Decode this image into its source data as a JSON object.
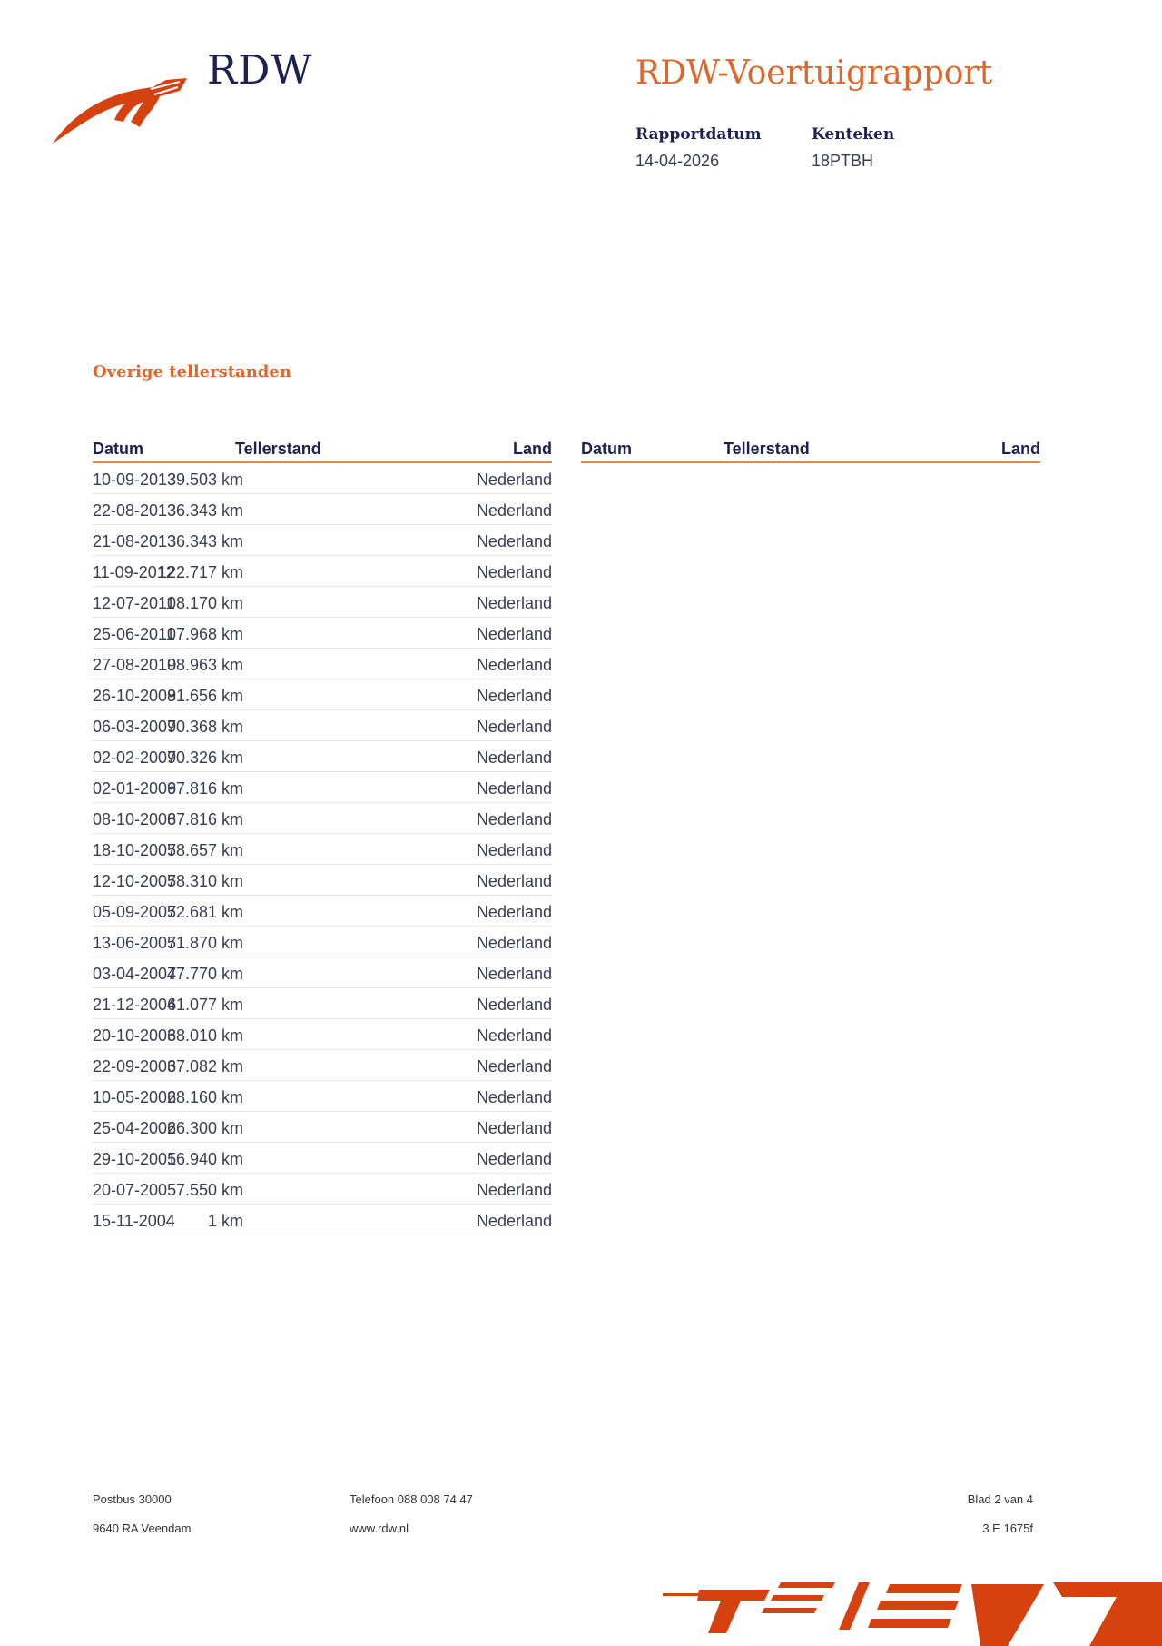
{
  "header": {
    "logo_text": "RDW",
    "title": "RDW-Voertuigrapport",
    "report_date_label": "Rapportdatum",
    "report_date": "14-04-2026",
    "plate_label": "Kenteken",
    "plate": "18PTBH"
  },
  "section": {
    "title": "Overige tellerstanden"
  },
  "table": {
    "columns": [
      "Datum",
      "Tellerstand",
      "Land"
    ],
    "rows": [
      [
        "10-09-2013",
        "139.503 km",
        "Nederland"
      ],
      [
        "22-08-2013",
        "136.343 km",
        "Nederland"
      ],
      [
        "21-08-2013",
        "136.343 km",
        "Nederland"
      ],
      [
        "11-09-2012",
        "122.717 km",
        "Nederland"
      ],
      [
        "12-07-2011",
        "108.170 km",
        "Nederland"
      ],
      [
        "25-06-2011",
        "107.968 km",
        "Nederland"
      ],
      [
        "27-08-2010",
        "98.963 km",
        "Nederland"
      ],
      [
        "26-10-2009",
        "81.656 km",
        "Nederland"
      ],
      [
        "06-03-2009",
        "70.368 km",
        "Nederland"
      ],
      [
        "02-02-2009",
        "70.326 km",
        "Nederland"
      ],
      [
        "02-01-2009",
        "67.816 km",
        "Nederland"
      ],
      [
        "08-10-2008",
        "67.816 km",
        "Nederland"
      ],
      [
        "18-10-2007",
        "58.657 km",
        "Nederland"
      ],
      [
        "12-10-2007",
        "58.310 km",
        "Nederland"
      ],
      [
        "05-09-2007",
        "52.681 km",
        "Nederland"
      ],
      [
        "13-06-2007",
        "51.870 km",
        "Nederland"
      ],
      [
        "03-04-2007",
        "47.770 km",
        "Nederland"
      ],
      [
        "21-12-2006",
        "41.077 km",
        "Nederland"
      ],
      [
        "20-10-2006",
        "38.010 km",
        "Nederland"
      ],
      [
        "22-09-2006",
        "37.082 km",
        "Nederland"
      ],
      [
        "10-05-2006",
        "28.160 km",
        "Nederland"
      ],
      [
        "25-04-2006",
        "26.300 km",
        "Nederland"
      ],
      [
        "29-10-2005",
        "16.940 km",
        "Nederland"
      ],
      [
        "20-07-2005",
        "7.550 km",
        "Nederland"
      ],
      [
        "15-11-2004",
        "1 km",
        "Nederland"
      ]
    ]
  },
  "footer": {
    "address1": "Postbus 30000",
    "address2": "9640 RA Veendam",
    "phone": "Telefoon 088 008 74 47",
    "website": "www.rdw.nl",
    "page": "Blad 2 van 4",
    "code": "3 E 1675f"
  },
  "colors": {
    "accent": "#e0672a",
    "logo": "#d5420f",
    "navy": "#1c2150"
  }
}
